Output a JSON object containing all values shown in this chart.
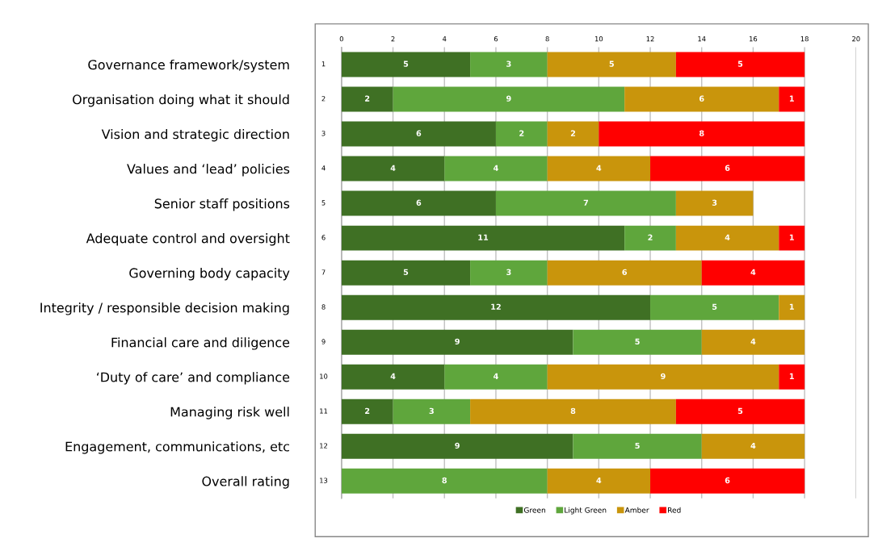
{
  "chart_data": {
    "type": "bar",
    "orientation": "horizontal",
    "stacked": true,
    "data_labels": true,
    "grid": "x",
    "legend": "bottom",
    "categories": [
      "Governance framework/system",
      "Organisation doing what it should",
      "Vision and strategic direction",
      "Values and ‘lead’ policies",
      "Senior staff positions",
      "Adequate control and oversight",
      "Governing body capacity",
      "Integrity / responsible decision making",
      "Financial care and diligence",
      "‘Duty of care’ and compliance",
      "Managing risk well",
      "Engagement, communications, etc",
      "Overall rating"
    ],
    "annotations": [
      "1",
      "2",
      "3",
      "4",
      "5",
      "6",
      "7",
      "8",
      "9",
      "10",
      "11",
      "12",
      "13"
    ],
    "xlim": [
      0,
      20
    ],
    "xticks": [
      0,
      2,
      4,
      6,
      8,
      10,
      12,
      14,
      16,
      18,
      20
    ],
    "series": [
      {
        "name": "Green",
        "color": "#3f7024",
        "values": [
          5,
          2,
          6,
          4,
          6,
          11,
          5,
          12,
          9,
          4,
          2,
          9,
          null
        ]
      },
      {
        "name": "Light Green",
        "color": "#5fa63c",
        "values": [
          3,
          9,
          2,
          4,
          7,
          2,
          3,
          5,
          5,
          4,
          3,
          5,
          8
        ]
      },
      {
        "name": "Amber",
        "color": "#c9950c",
        "values": [
          5,
          6,
          2,
          4,
          3,
          4,
          6,
          1,
          4,
          9,
          8,
          4,
          4
        ]
      },
      {
        "name": "Red",
        "color": "#ff0000",
        "values": [
          5,
          1,
          8,
          6,
          null,
          1,
          4,
          null,
          null,
          1,
          5,
          null,
          6
        ]
      }
    ]
  }
}
